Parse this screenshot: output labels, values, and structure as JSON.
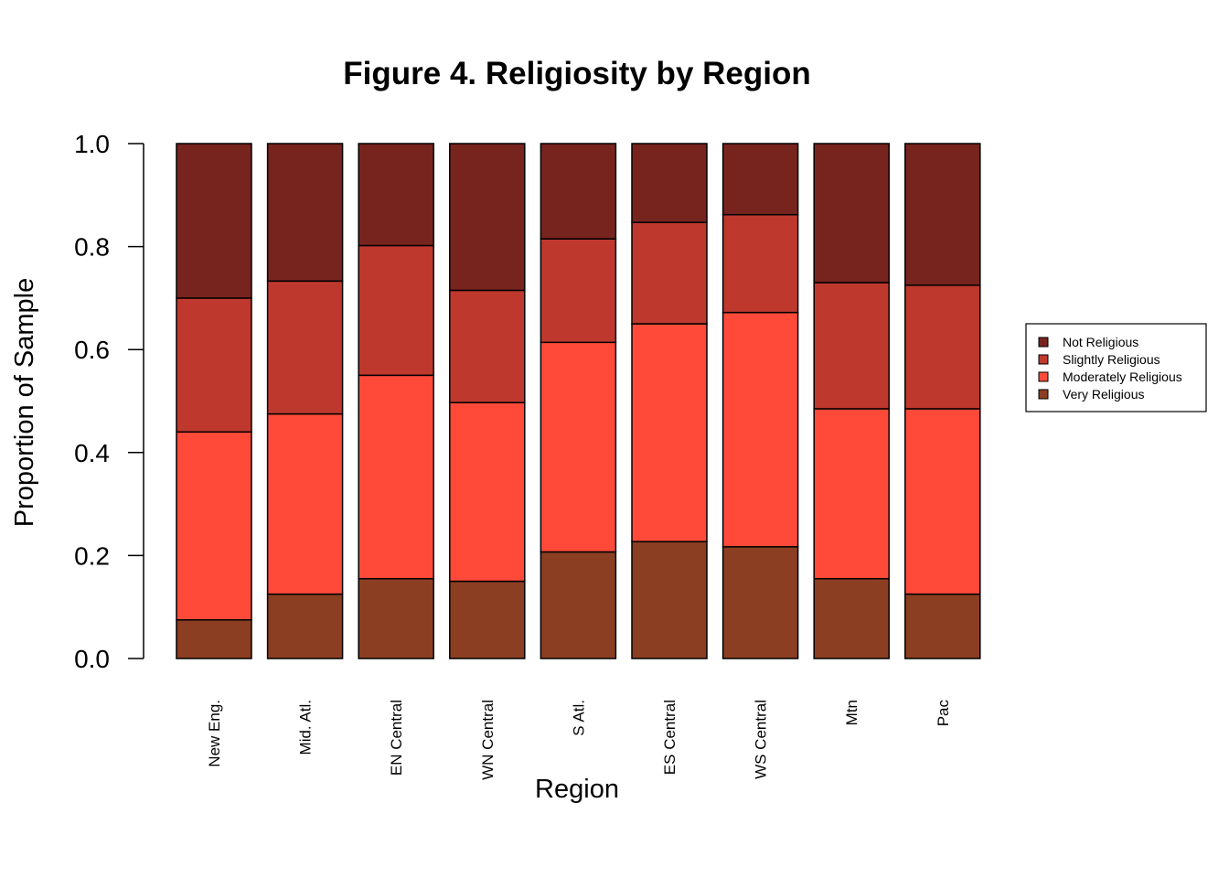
{
  "chart_data": {
    "type": "bar",
    "stacked": true,
    "title": "Figure 4. Religiosity by Region",
    "xlabel": "Region",
    "ylabel": "Proportion of Sample",
    "ylim": [
      0,
      1
    ],
    "yticks": [
      "0.0",
      "0.2",
      "0.4",
      "0.6",
      "0.8",
      "1.0"
    ],
    "categories": [
      "New Eng.",
      "Mid. Atl.",
      "EN Central",
      "WN Central",
      "S Atl.",
      "ES Central",
      "WS Central",
      "Mtn",
      "Pac"
    ],
    "series": [
      {
        "name": "Very Religious",
        "color": "#8B3E22",
        "values": [
          0.075,
          0.125,
          0.155,
          0.15,
          0.207,
          0.227,
          0.217,
          0.155,
          0.125
        ]
      },
      {
        "name": "Moderately Religious",
        "color": "#FF4A3A",
        "values": [
          0.365,
          0.35,
          0.395,
          0.347,
          0.407,
          0.423,
          0.455,
          0.33,
          0.36
        ]
      },
      {
        "name": "Slightly Religious",
        "color": "#BF382D",
        "values": [
          0.26,
          0.258,
          0.252,
          0.218,
          0.201,
          0.197,
          0.19,
          0.245,
          0.24
        ]
      },
      {
        "name": "Not Religious",
        "color": "#78241E",
        "values": [
          0.3,
          0.267,
          0.198,
          0.285,
          0.185,
          0.153,
          0.138,
          0.27,
          0.275
        ]
      }
    ],
    "legend": {
      "position": "right",
      "entries": [
        "Not Religious",
        "Slightly Religious",
        "Moderately Religious",
        "Very Religious"
      ]
    }
  }
}
